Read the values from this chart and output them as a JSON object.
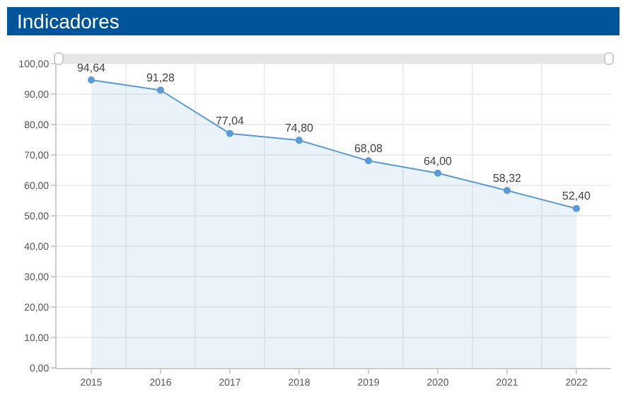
{
  "chart_data": {
    "type": "area",
    "title": "Indicadores",
    "categories": [
      "2015",
      "2016",
      "2017",
      "2018",
      "2019",
      "2020",
      "2021",
      "2022"
    ],
    "series": [
      {
        "color": "#5b9bd5",
        "values": [
          94.64,
          91.28,
          77.04,
          74.8,
          68.08,
          64.0,
          58.32,
          52.4
        ],
        "value_labels": [
          "94,64",
          "91,28",
          "77,04",
          "74,80",
          "68,08",
          "64,00",
          "58,32",
          "52,40"
        ]
      }
    ],
    "ylim": [
      0,
      100
    ],
    "yticks": [
      {
        "value": 0,
        "label": "0,00"
      },
      {
        "value": 10,
        "label": "10,00"
      },
      {
        "value": 20,
        "label": "20,00"
      },
      {
        "value": 30,
        "label": "30,00"
      },
      {
        "value": 40,
        "label": "40,00"
      },
      {
        "value": 50,
        "label": "50,00"
      },
      {
        "value": 60,
        "label": "60,00"
      },
      {
        "value": 70,
        "label": "70,00"
      },
      {
        "value": 80,
        "label": "80,00"
      },
      {
        "value": 90,
        "label": "90,00"
      },
      {
        "value": 100,
        "label": "100,00"
      }
    ],
    "grid": true,
    "marker": "circle"
  }
}
